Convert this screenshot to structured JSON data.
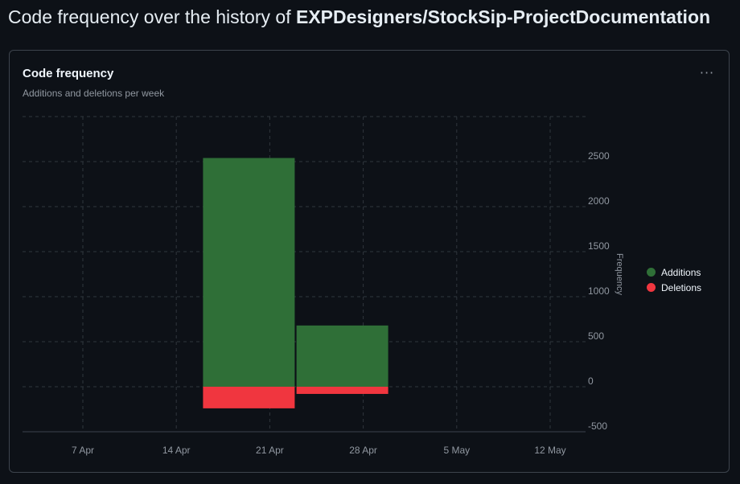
{
  "header": {
    "title_prefix": "Code frequency over the history of",
    "repo": "EXPDesigners/StockSip-ProjectDocumentation"
  },
  "card": {
    "title": "Code frequency",
    "subtitle": "Additions and deletions per week",
    "more_label": "···"
  },
  "colors": {
    "additions": "#2f6f37",
    "deletions": "#f0363f",
    "grid": "#30363d",
    "axis_text": "#9198a1"
  },
  "chart_data": {
    "type": "bar",
    "title": "Code frequency",
    "subtitle": "Additions and deletions per week",
    "ylabel": "Frequency",
    "xlabel": "",
    "x_ticks": [
      "7 Apr",
      "14 Apr",
      "21 Apr",
      "28 Apr",
      "5 May",
      "12 May"
    ],
    "y_ticks": [
      2500,
      2000,
      1500,
      1000,
      500,
      0,
      -500
    ],
    "ylim": [
      -500,
      3000
    ],
    "legend_position": "right",
    "grid": true,
    "series": [
      {
        "name": "Additions",
        "color": "#2f6f37",
        "points": [
          {
            "week_start": "2025-04-16",
            "value": 2540
          },
          {
            "week_start": "2025-04-23",
            "value": 680
          }
        ]
      },
      {
        "name": "Deletions",
        "color": "#f0363f",
        "points": [
          {
            "week_start": "2025-04-16",
            "value": -240
          },
          {
            "week_start": "2025-04-23",
            "value": -80
          }
        ]
      }
    ]
  }
}
